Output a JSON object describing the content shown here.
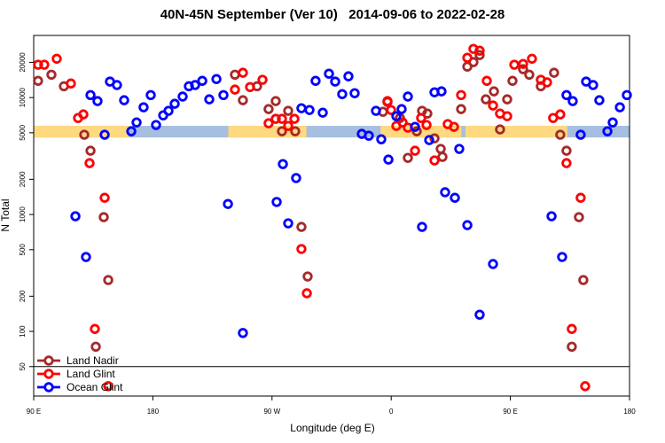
{
  "chart_data": {
    "type": "scatter",
    "title": "40N-45N September (Ver 10)   2014-09-06 to 2022-02-28",
    "x_label": "Longitude (deg E)",
    "y_label": "N Total",
    "log_y": true,
    "xlim": [
      90,
      540
    ],
    "ylim": [
      28,
      34000
    ],
    "xticks": [
      {
        "value": 90,
        "label": "90 E"
      },
      180,
      {
        "value": 270,
        "label": "90 W"
      },
      {
        "value": 360,
        "label": "0"
      },
      {
        "value": 450,
        "label": "90 E"
      },
      {
        "value": 540,
        "label": "180"
      }
    ],
    "yticks": [
      50,
      100,
      200,
      500,
      1000,
      2000,
      5000,
      10000,
      20000
    ],
    "hline": 50,
    "legend": "bottomleft",
    "band_ylim": [
      4560,
      5730
    ],
    "band_color": "#a6bedf",
    "land_segments": [
      [
        90,
        162
      ],
      [
        237,
        296
      ],
      [
        352,
        413
      ],
      [
        416,
        493
      ]
    ],
    "land_color": "#ffd97f",
    "series": [
      {
        "name": "Land Nadir",
        "color": "#a52a2a",
        "x": [
          93.3,
          103.4,
          112.8,
          128.2,
          132.9,
          136.9,
          142.9,
          146.3,
          242,
          248,
          258.7,
          267.4,
          272.8,
          277.5,
          282.2,
          287.5,
          292.2,
          296.9,
          353.8,
          357.2,
          366.6,
          372.6,
          379.3,
          383.3,
          387.3,
          392.7,
          397.4,
          398.7,
          412.8,
          417.5,
          422.1,
          426.8,
          431.5,
          437.6,
          442.2,
          447.6,
          451.6,
          459.6,
          464.3,
          473,
          483,
          487.7,
          492.4,
          496.4,
          501.8,
          505.1
        ],
        "values": [
          13900,
          15700,
          12500,
          4810,
          3510,
          74,
          949,
          275,
          15700,
          9490,
          12500,
          7970,
          9330,
          5150,
          7700,
          5150,
          783,
          295,
          7560,
          9170,
          6690,
          3050,
          5150,
          7700,
          7300,
          4480,
          3640,
          3110,
          7970,
          18400,
          20100,
          23100,
          9660,
          11300,
          5340,
          9660,
          13900,
          17500,
          15700,
          12500,
          16300,
          4810,
          3510,
          74,
          949,
          275
        ]
      },
      {
        "name": "Land Glint",
        "color": "#ff0000",
        "x": [
          93.3,
          98,
          107.4,
          118.1,
          123.5,
          127.5,
          132.2,
          136.2,
          143.6,
          146.3,
          242,
          248,
          253.4,
          262.8,
          267.4,
          272.8,
          277.5,
          282.2,
          286.9,
          292.2,
          296.3,
          357.2,
          359.9,
          363.9,
          368.6,
          372.6,
          378,
          382.6,
          386.7,
          392.7,
          402.7,
          407.4,
          412.8,
          417.5,
          422.1,
          426.8,
          432.2,
          436.9,
          442.2,
          447.6,
          453,
          459.6,
          466.3,
          473,
          477.7,
          482.3,
          487.7,
          492.4,
          496.4,
          503.1,
          506.5
        ],
        "values": [
          19100,
          19100,
          21500,
          13200,
          6690,
          7180,
          2750,
          105,
          1390,
          34,
          11700,
          16300,
          12300,
          14200,
          6030,
          6580,
          6580,
          5720,
          6580,
          507,
          212,
          9330,
          7830,
          5720,
          6130,
          5530,
          3510,
          6690,
          5830,
          2900,
          5930,
          5620,
          10500,
          21900,
          26100,
          25200,
          13900,
          8550,
          7300,
          6930,
          19100,
          19400,
          21500,
          14200,
          13500,
          6690,
          7180,
          2750,
          105,
          1390,
          34
        ]
      },
      {
        "name": "Ocean Glint",
        "color": "#0000ff",
        "x": [
          121.5,
          129.5,
          132.9,
          138.2,
          143.6,
          147.6,
          152.9,
          158.3,
          163.7,
          167.7,
          173,
          178.4,
          182.4,
          187.8,
          191.8,
          196.5,
          202.5,
          207.2,
          211.9,
          217.3,
          222.6,
          228,
          233.3,
          236.7,
          248,
          273.5,
          278.2,
          282.2,
          288.2,
          292.2,
          298.3,
          302.9,
          308.3,
          313,
          317.7,
          323,
          327.7,
          332.4,
          337.8,
          343.1,
          348.5,
          352.5,
          357.9,
          363.9,
          367.9,
          372.6,
          378,
          383.3,
          388.7,
          392.7,
          398,
          400.7,
          408.1,
          411.4,
          417.5,
          426.8,
          436.9,
          481.1,
          489.1,
          492.4,
          497.1,
          503.1,
          507.2,
          512.5,
          517.2,
          523.3,
          527.3,
          532.7,
          538
        ],
        "values": [
          966,
          433,
          10500,
          9330,
          4810,
          13700,
          12800,
          9490,
          5150,
          6130,
          8260,
          10500,
          5830,
          7050,
          7700,
          8850,
          10200,
          12500,
          12800,
          13900,
          9660,
          14400,
          10500,
          1230,
          97,
          1280,
          2700,
          840,
          2050,
          8110,
          7830,
          13900,
          7430,
          16000,
          13700,
          10700,
          15200,
          10900,
          4890,
          4720,
          7700,
          4400,
          2950,
          6930,
          7970,
          10200,
          5620,
          783,
          4330,
          11100,
          11300,
          1550,
          1390,
          3640,
          811,
          139,
          377,
          966,
          433,
          10500,
          9330,
          4810,
          13700,
          12800,
          9490,
          5150,
          6130,
          8260,
          10500
        ]
      }
    ]
  }
}
